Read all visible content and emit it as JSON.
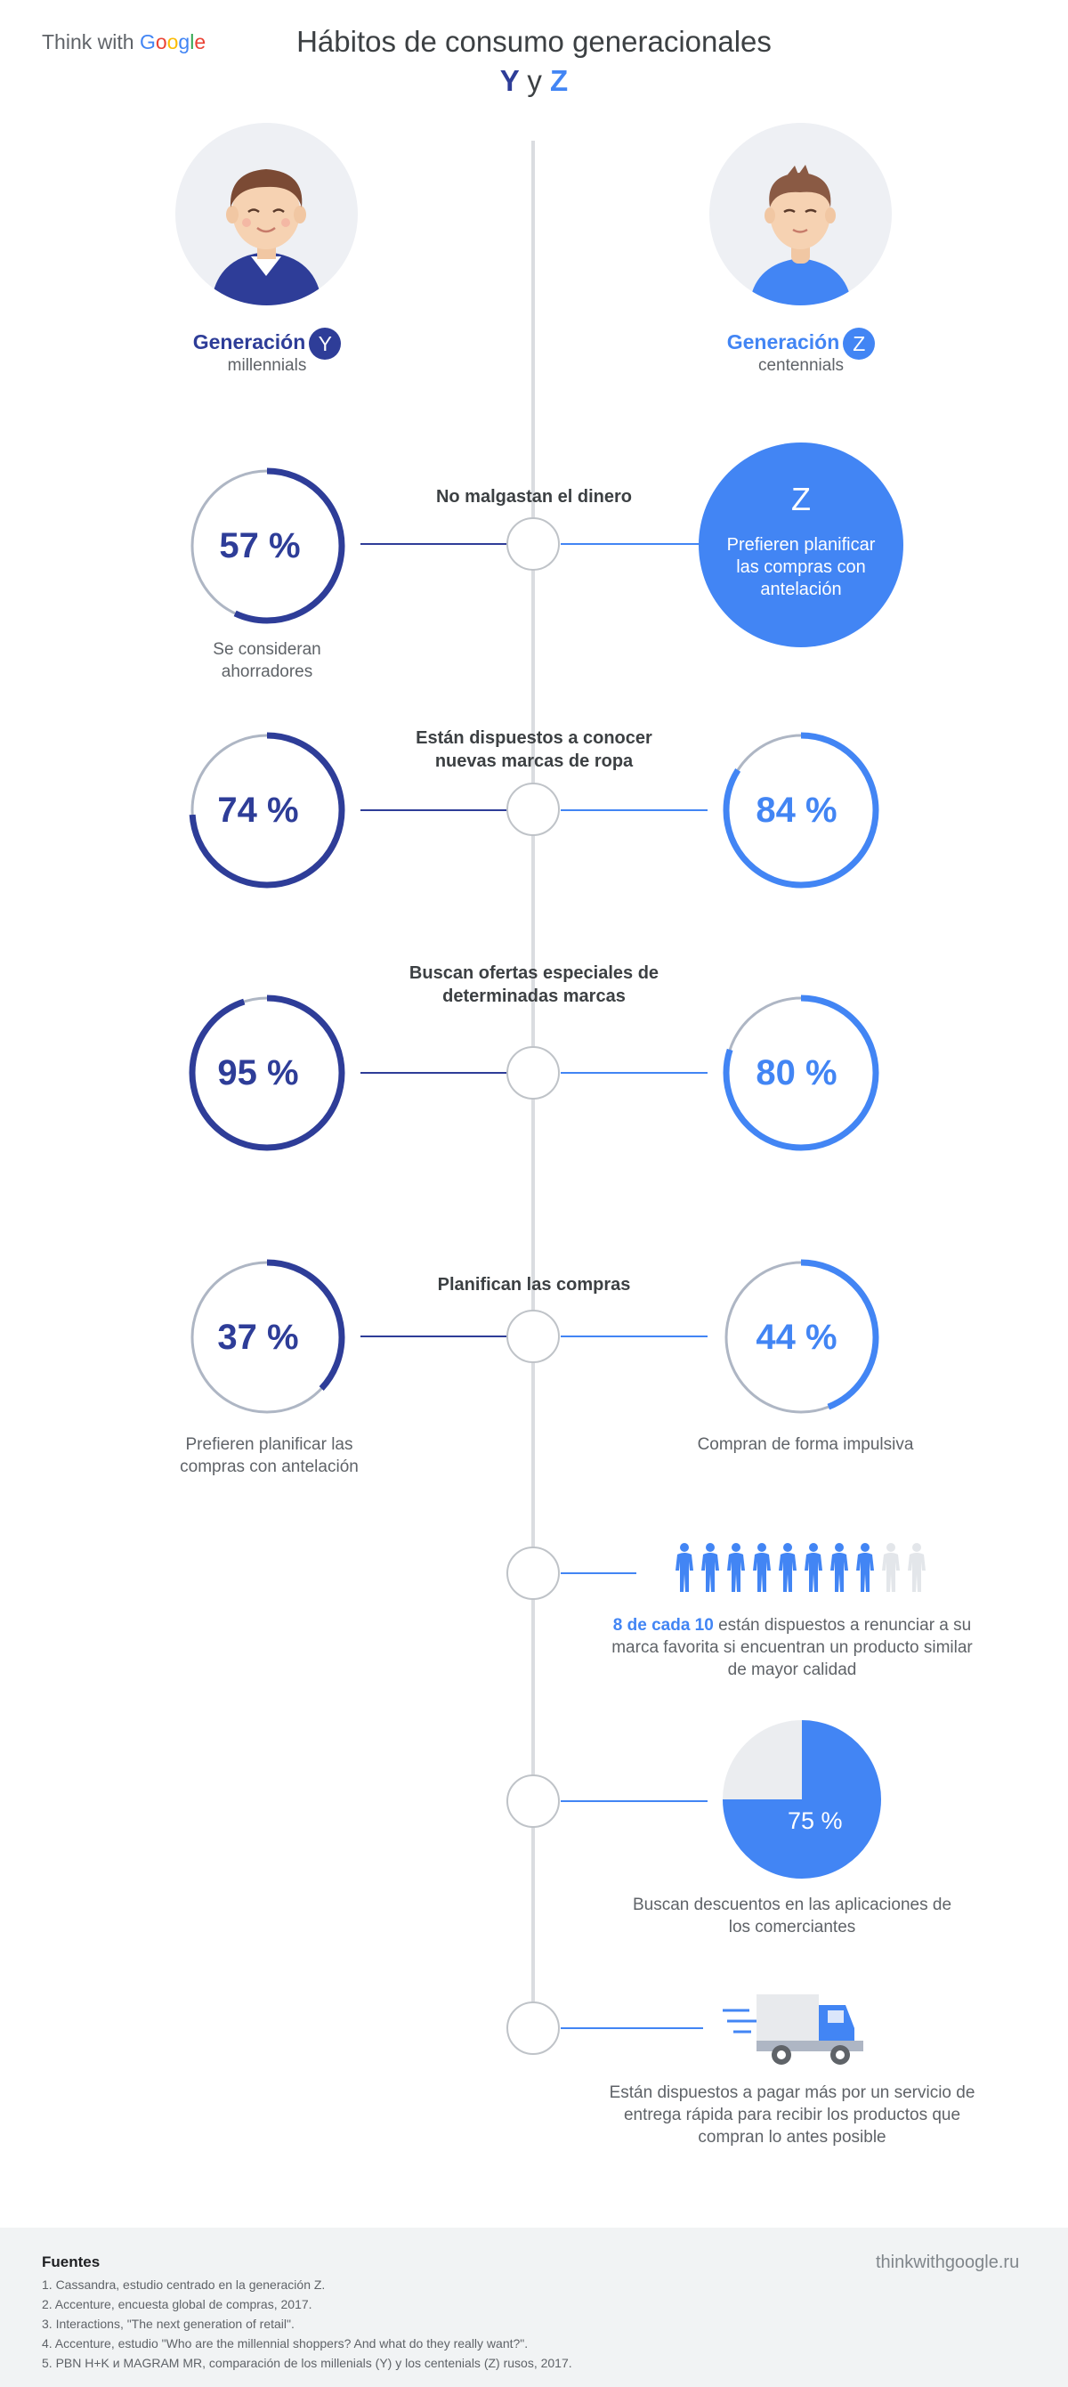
{
  "logo": {
    "prefix": "Think with ",
    "g": "G",
    "o1": "o",
    "o2": "o",
    "g2": "g",
    "l": "l",
    "e": "e"
  },
  "title": "Hábitos de consumo generacionales",
  "subtitle": {
    "y": "Y",
    "and": "y",
    "z": "Z"
  },
  "gen_y": {
    "label": "Generación",
    "badge": "Y",
    "sub": "millennials"
  },
  "gen_z": {
    "label": "Generación",
    "badge": "Z",
    "sub": "centennials"
  },
  "colors": {
    "gen_y": "#2e3d98",
    "gen_z": "#4285f4",
    "track": "#aeb6c4",
    "spine": "#dadce0"
  },
  "sections": [
    {
      "title": "No malgastan el dinero",
      "y": {
        "value": 57,
        "label": "57 %",
        "caption": "Se consideran ahorradores"
      },
      "z": {
        "letter": "Z",
        "text": "Prefieren planificar las compras con antelación"
      }
    },
    {
      "title": "Están dispuestos a conocer nuevas marcas de ropa",
      "y": {
        "value": 74,
        "label": "74 %"
      },
      "z": {
        "value": 84,
        "label": "84 %"
      }
    },
    {
      "title": "Buscan ofertas especiales de determinadas marcas",
      "y": {
        "value": 95,
        "label": "95 %"
      },
      "z": {
        "value": 80,
        "label": "80 %"
      }
    },
    {
      "title": "Planifican las compras",
      "y": {
        "value": 37,
        "label": "37 %",
        "caption": "Prefieren planificar las compras con antelación"
      },
      "z": {
        "value": 44,
        "label": "44 %",
        "caption": "Compran de forma impulsiva"
      }
    }
  ],
  "people_stat": {
    "highlight": "8 de cada 10",
    "text": "están dispuestos a renunciar a su marca favorita si encuentran un producto similar de mayor calidad",
    "filled": 8,
    "total": 10
  },
  "pie_stat": {
    "value": 75,
    "label": "75 %",
    "caption": "Buscan descuentos en las aplicaciones de los comerciantes"
  },
  "truck_stat": {
    "icon": "delivery-truck-icon",
    "caption": "Están dispuestos a pagar más por un servicio de entrega rápida para recibir los productos que compran lo antes posible"
  },
  "footer": {
    "title": "Fuentes",
    "items": [
      "1. Cassandra, estudio centrado en la generación Z.",
      "2. Accenture, encuesta global de compras, 2017.",
      "3. Interactions, \"The next generation of retail\".",
      "4. Accenture, estudio \"Who are the millennial shoppers? And what do they really want?\".",
      "5. PBN H+K и MAGRAM MR, comparación de los millenials (Y) y los centenials (Z) rusos, 2017."
    ],
    "site": "thinkwithgoogle.ru"
  }
}
